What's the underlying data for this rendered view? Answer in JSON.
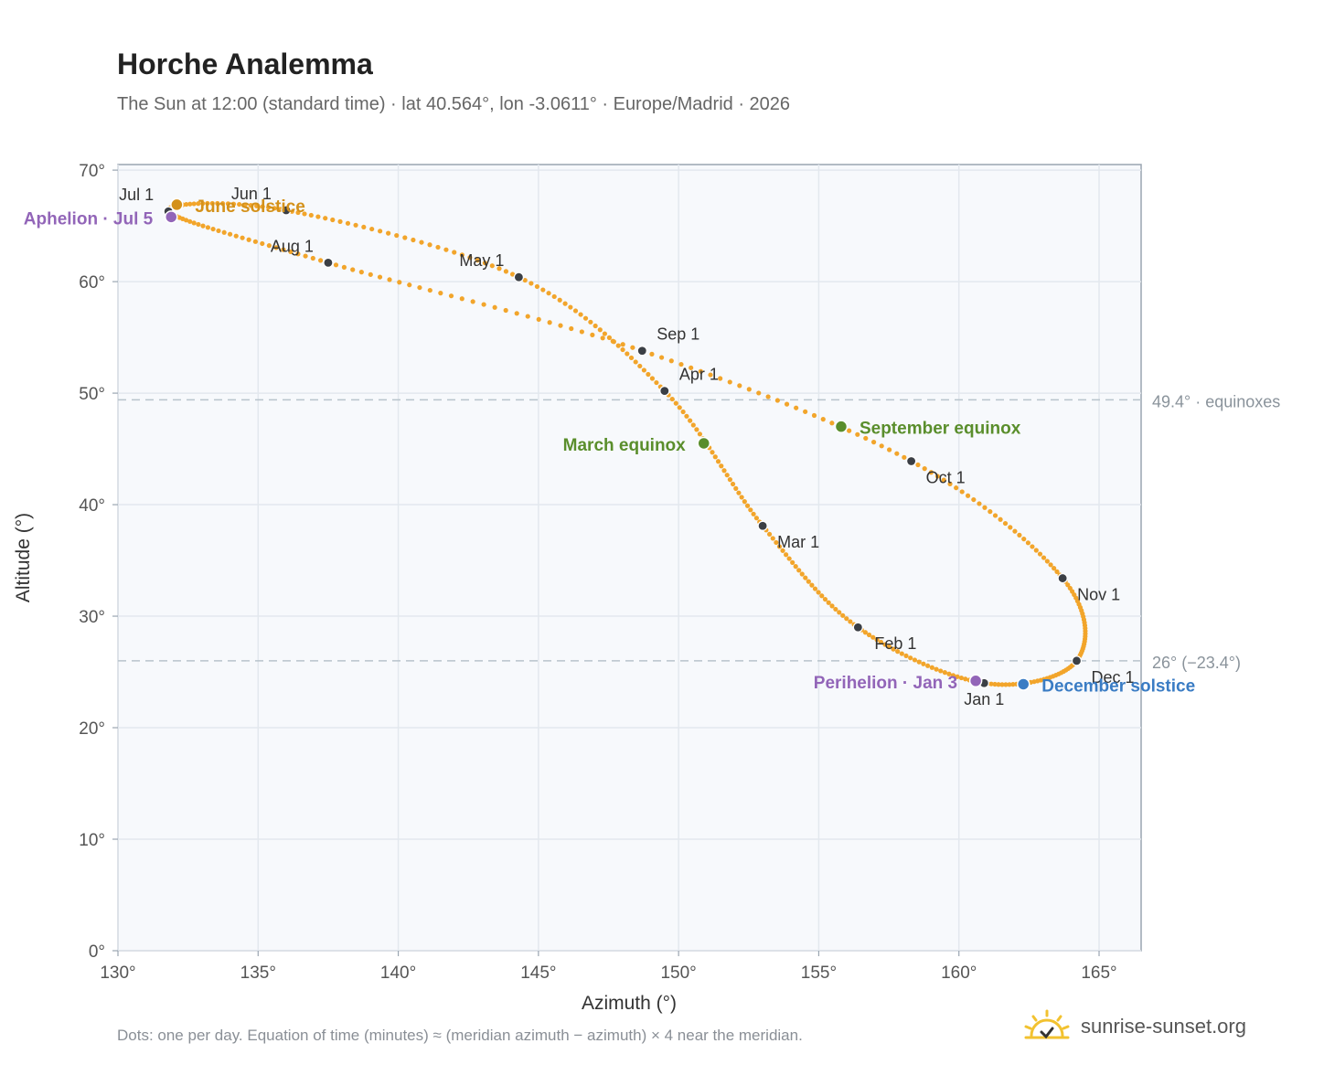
{
  "title": "Horche Analemma",
  "subtitle": "The Sun at 12:00 (standard time) · lat 40.564°, lon -3.0611° · Europe/Madrid · 2026",
  "footnote": "Dots: one per day. Equation of time (minutes) ≈ (meridian azimuth − azimuth) × 4 near the meridian.",
  "brand": {
    "name": "sunrise-sunset.org",
    "icon": "sun-checkmark-logo-icon"
  },
  "colors": {
    "curve": "#f2a52b",
    "month_marker": "#3b3f45",
    "june_solstice": "#d4911a",
    "december_solstice": "#3a7cc4",
    "equinox": "#5a8e2c",
    "apsis": "#9265b8",
    "reference_line": "#b8c4cc",
    "plot_bg": "#f7f9fc"
  },
  "chart_data": {
    "type": "scatter",
    "xlabel": "Azimuth (°)",
    "ylabel": "Altitude (°)",
    "xlim": [
      130,
      166.5
    ],
    "ylim": [
      0,
      70.5
    ],
    "xticks": [
      130,
      135,
      140,
      145,
      150,
      155,
      160,
      165
    ],
    "xtick_labels": [
      "130°",
      "135°",
      "140°",
      "145°",
      "150°",
      "155°",
      "160°",
      "165°"
    ],
    "yticks": [
      0,
      10,
      20,
      30,
      40,
      50,
      60,
      70
    ],
    "ytick_labels": [
      "0°",
      "10°",
      "20°",
      "30°",
      "40°",
      "50°",
      "60°",
      "70°"
    ],
    "grid": true,
    "series_daily_points": [
      [
        160.9,
        24.0
      ],
      [
        156.4,
        29.0
      ],
      [
        153.0,
        38.1
      ],
      [
        149.5,
        50.2
      ],
      [
        144.3,
        60.4
      ],
      [
        136.0,
        66.4
      ],
      [
        131.8,
        66.3
      ],
      [
        137.5,
        61.7
      ],
      [
        148.7,
        53.8
      ],
      [
        158.3,
        43.9
      ],
      [
        163.7,
        33.4
      ],
      [
        164.2,
        26.0
      ],
      [
        160.9,
        24.0
      ]
    ],
    "month_markers": [
      {
        "label": "Jan 1",
        "x": 160.9,
        "y": 24.0
      },
      {
        "label": "Feb 1",
        "x": 156.4,
        "y": 29.0
      },
      {
        "label": "Mar 1",
        "x": 153.0,
        "y": 38.1
      },
      {
        "label": "Apr 1",
        "x": 149.5,
        "y": 50.2
      },
      {
        "label": "May 1",
        "x": 144.3,
        "y": 60.4
      },
      {
        "label": "Jun 1",
        "x": 136.0,
        "y": 66.4
      },
      {
        "label": "Jul 1",
        "x": 131.8,
        "y": 66.3
      },
      {
        "label": "Aug 1",
        "x": 137.5,
        "y": 61.7
      },
      {
        "label": "Sep 1",
        "x": 148.7,
        "y": 53.8
      },
      {
        "label": "Oct 1",
        "x": 158.3,
        "y": 43.9
      },
      {
        "label": "Nov 1",
        "x": 163.7,
        "y": 33.4
      },
      {
        "label": "Dec 1",
        "x": 164.2,
        "y": 26.0
      }
    ],
    "events": [
      {
        "label": "June solstice",
        "x": 132.1,
        "y": 66.9,
        "color": "#d4911a"
      },
      {
        "label": "Aphelion · Jul 5",
        "x": 131.9,
        "y": 65.8,
        "color": "#9265b8"
      },
      {
        "label": "March equinox",
        "x": 150.9,
        "y": 45.5,
        "color": "#5a8e2c"
      },
      {
        "label": "September equinox",
        "x": 155.8,
        "y": 47.0,
        "color": "#5a8e2c"
      },
      {
        "label": "Perihelion · Jan 3",
        "x": 160.6,
        "y": 24.2,
        "color": "#9265b8"
      },
      {
        "label": "December solstice",
        "x": 162.3,
        "y": 23.9,
        "color": "#3a7cc4"
      }
    ],
    "reference_lines": [
      {
        "y": 49.4,
        "label": "49.4° · equinoxes"
      },
      {
        "y": 26.0,
        "label": "26° (−23.4°)"
      }
    ]
  }
}
